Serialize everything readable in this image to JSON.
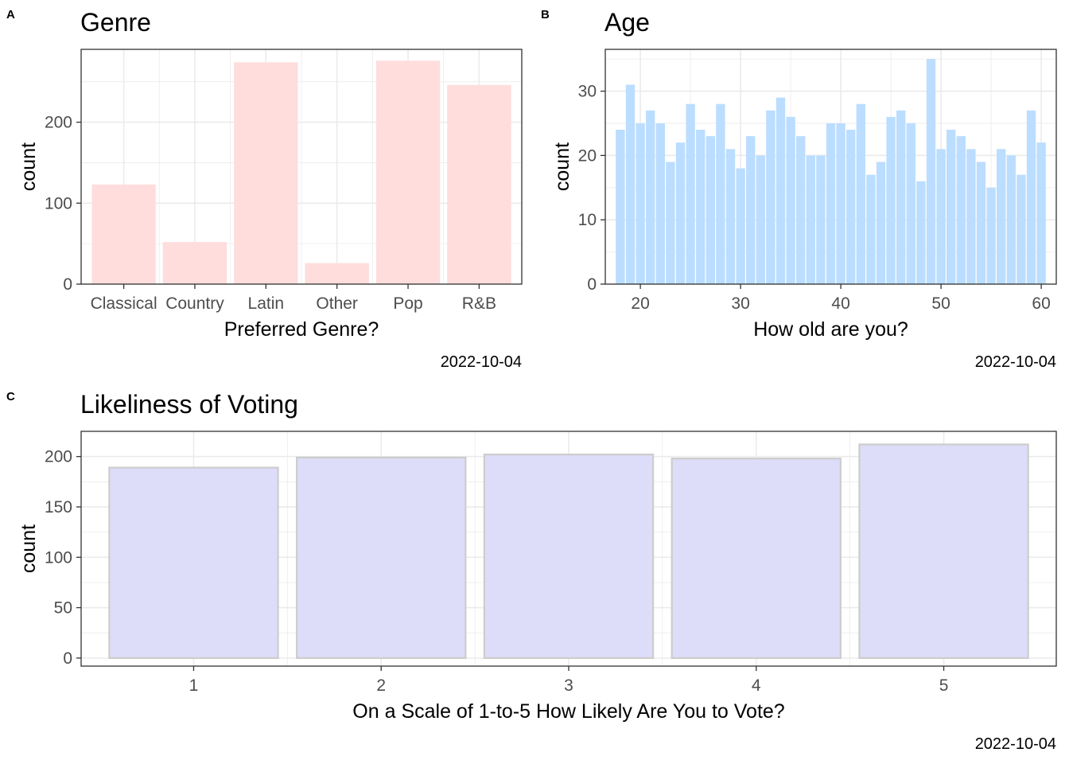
{
  "chart_data": [
    {
      "tag": "A",
      "type": "bar",
      "title": "Genre",
      "xlabel": "Preferred Genre?",
      "ylabel": "count",
      "caption": "2022-10-04",
      "categories": [
        "Classical",
        "Country",
        "Latin",
        "Other",
        "Pop",
        "R&B"
      ],
      "values": [
        123,
        52,
        274,
        26,
        276,
        246
      ],
      "ylim": [
        0,
        290
      ],
      "yticks": [
        0,
        100,
        200
      ],
      "grid": true,
      "fill": "#FFDDDD",
      "border": "none"
    },
    {
      "tag": "B",
      "type": "bar",
      "title": "Age",
      "xlabel": "How old are you?",
      "ylabel": "count",
      "caption": "2022-10-04",
      "x": [
        18,
        19,
        20,
        21,
        22,
        23,
        24,
        25,
        26,
        27,
        28,
        29,
        30,
        31,
        32,
        33,
        34,
        35,
        36,
        37,
        38,
        39,
        40,
        41,
        42,
        43,
        44,
        45,
        46,
        47,
        48,
        49,
        50,
        51,
        52,
        53,
        54,
        55,
        56,
        57,
        58,
        59,
        60
      ],
      "values": [
        24,
        31,
        25,
        27,
        25,
        19,
        22,
        28,
        24,
        23,
        28,
        21,
        18,
        23,
        20,
        27,
        29,
        26,
        23,
        20,
        20,
        25,
        25,
        24,
        28,
        17,
        19,
        26,
        27,
        25,
        16,
        35,
        21,
        24,
        23,
        21,
        19,
        15,
        21,
        20,
        17,
        27,
        22
      ],
      "xlim": [
        16.5,
        61.5
      ],
      "ylim": [
        0,
        36.5
      ],
      "xticks": [
        20,
        30,
        40,
        50,
        60
      ],
      "yticks": [
        0,
        10,
        20,
        30
      ],
      "grid": true,
      "fill": "#BBDDFF",
      "border": "none"
    },
    {
      "tag": "C",
      "type": "bar",
      "title": "Likeliness of Voting",
      "xlabel": "On a Scale of 1-to-5 How Likely Are You to Vote?",
      "ylabel": "count",
      "caption": "2022-10-04",
      "categories": [
        "1",
        "2",
        "3",
        "4",
        "5"
      ],
      "values": [
        189,
        199,
        202,
        198,
        212
      ],
      "ylim": [
        -8,
        225
      ],
      "yticks": [
        0,
        50,
        100,
        150,
        200
      ],
      "grid": true,
      "fill": "#DDDDFA",
      "border": "#cccccc"
    }
  ]
}
